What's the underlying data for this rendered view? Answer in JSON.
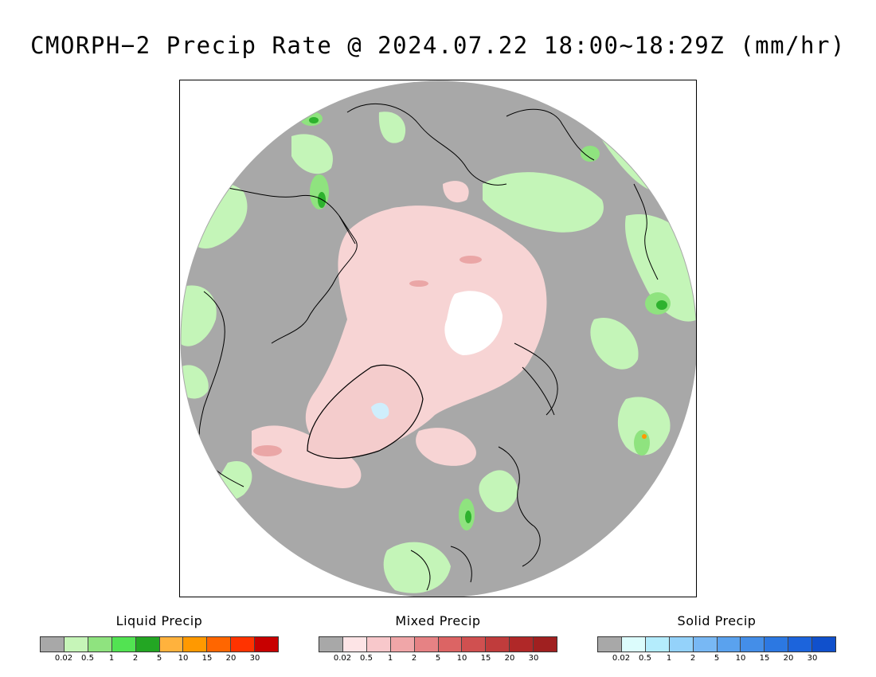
{
  "title": "CMORPH−2 Precip Rate @ 2024.07.22 18:00~18:29Z (mm/hr)",
  "map": {
    "projection": "north-polar-stereographic",
    "colors": {
      "ocean_land_no_precip": "#a8a8a8",
      "liquid_light": "#c4f5b8",
      "liquid_med": "#8fe37f",
      "liquid_heavy": "#2eb22e",
      "mixed_light": "#f7d4d4",
      "mixed_med": "#eaa6a6",
      "solid_light": "#cfeefc",
      "no_data": "#ffffff",
      "coastline": "#000000"
    }
  },
  "legends": [
    {
      "title": "Liquid Precip",
      "colors": [
        "#a8a8a8",
        "#c6f5b8",
        "#8fe37f",
        "#52e352",
        "#23a623",
        "#ffb23d",
        "#ff9900",
        "#ff6600",
        "#ff3300",
        "#c80000"
      ],
      "ticks": [
        "0.02",
        "0.5",
        "1",
        "2",
        "5",
        "10",
        "15",
        "20",
        "30"
      ]
    },
    {
      "title": "Mixed Precip",
      "colors": [
        "#a8a8a8",
        "#fde4e6",
        "#f8c8cb",
        "#f0a6a8",
        "#e68284",
        "#dc6464",
        "#d05050",
        "#c03c3c",
        "#b02828",
        "#a02020"
      ],
      "ticks": [
        "0.02",
        "0.5",
        "1",
        "2",
        "5",
        "10",
        "15",
        "20",
        "30"
      ]
    },
    {
      "title": "Solid Precip",
      "colors": [
        "#a8a8a8",
        "#dcfcfc",
        "#b4ecfc",
        "#94d2fa",
        "#78b8f4",
        "#5aa2ee",
        "#448ee8",
        "#2c78e2",
        "#1c64dc",
        "#1050cc"
      ],
      "ticks": [
        "0.02",
        "0.5",
        "1",
        "2",
        "5",
        "10",
        "15",
        "20",
        "30"
      ]
    }
  ]
}
